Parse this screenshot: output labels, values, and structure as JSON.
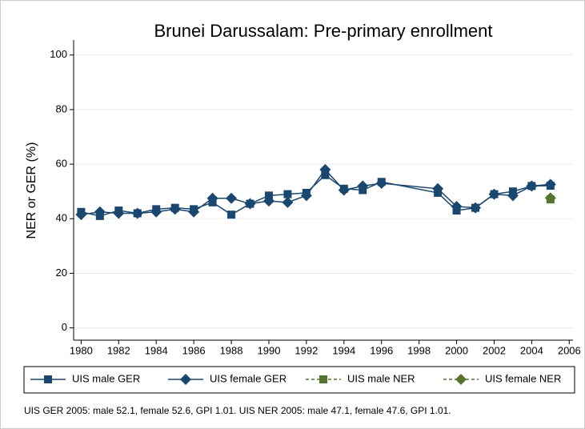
{
  "chart_data": {
    "type": "line",
    "title": "Brunei Darussalam: Pre-primary enrollment",
    "ylabel": "NER or GER (%)",
    "note": "UIS GER 2005: male 52.1, female 52.6, GPI 1.01. UIS NER 2005: male 47.1, female 47.6, GPI 1.01.",
    "x": [
      1980,
      1981,
      1982,
      1983,
      1984,
      1985,
      1986,
      1987,
      1988,
      1989,
      1990,
      1991,
      1992,
      1993,
      1994,
      1995,
      1996,
      1999,
      2000,
      2001,
      2002,
      2003,
      2004,
      2005
    ],
    "series": [
      {
        "name": "UIS male GER",
        "color": "#1a476f",
        "marker": "square",
        "dash": false,
        "values": [
          42.5,
          41,
          43,
          42,
          43.5,
          44,
          43.5,
          46,
          41.5,
          45.5,
          48.5,
          49,
          49.5,
          56,
          51,
          50.5,
          53.5,
          49.5,
          43,
          44,
          49,
          50,
          52,
          52.1
        ]
      },
      {
        "name": "UIS female GER",
        "color": "#1a476f",
        "marker": "diamond",
        "dash": false,
        "values": [
          41.5,
          42.5,
          42,
          42,
          42.5,
          43.5,
          42.5,
          47.5,
          47.5,
          45.5,
          46.5,
          46,
          48.5,
          58,
          50.5,
          52,
          53,
          51,
          44.5,
          44,
          49,
          48.5,
          52,
          52.6
        ]
      },
      {
        "name": "UIS male NER",
        "color": "#55752f",
        "marker": "square",
        "dash": true,
        "values": [
          null,
          null,
          null,
          null,
          null,
          null,
          null,
          null,
          null,
          null,
          null,
          null,
          null,
          null,
          null,
          null,
          null,
          null,
          null,
          null,
          null,
          null,
          null,
          47.1
        ]
      },
      {
        "name": "UIS female NER",
        "color": "#55752f",
        "marker": "diamond",
        "dash": true,
        "values": [
          null,
          null,
          null,
          null,
          null,
          null,
          null,
          null,
          null,
          null,
          null,
          null,
          null,
          null,
          null,
          null,
          null,
          null,
          null,
          null,
          null,
          null,
          null,
          47.6
        ]
      }
    ],
    "xlim": [
      1979.6,
      2006.2
    ],
    "xticks": [
      1980,
      1982,
      1984,
      1986,
      1988,
      1990,
      1992,
      1994,
      1996,
      1998,
      2000,
      2002,
      2004,
      2006
    ],
    "ylim": [
      -4.5,
      105.5
    ],
    "yticks": [
      0,
      20,
      40,
      60,
      80,
      100
    ],
    "grid": true
  }
}
